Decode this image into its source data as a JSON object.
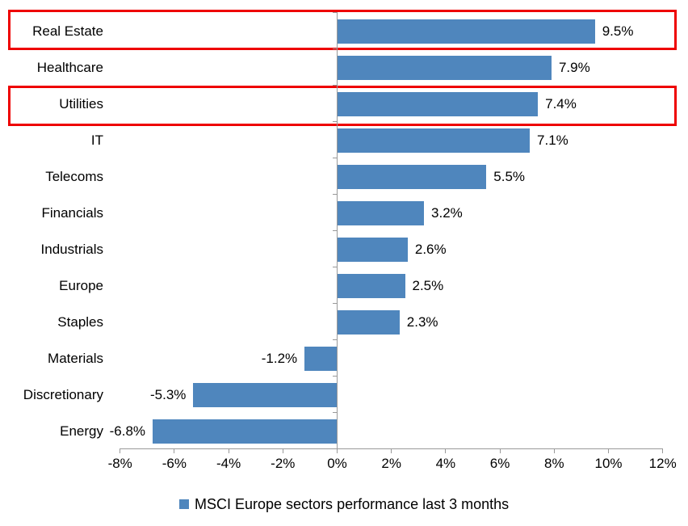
{
  "chart_data": {
    "type": "bar",
    "orientation": "horizontal",
    "title": "",
    "categories": [
      "Real Estate",
      "Healthcare",
      "Utilities",
      "IT",
      "Telecoms",
      "Financials",
      "Industrials",
      "Europe",
      "Staples",
      "Materials",
      "Discretionary",
      "Energy"
    ],
    "values": [
      9.5,
      7.9,
      7.4,
      7.1,
      5.5,
      3.2,
      2.6,
      2.5,
      2.3,
      -1.2,
      -5.3,
      -6.8
    ],
    "value_labels": [
      "9.5%",
      "7.9%",
      "7.4%",
      "7.1%",
      "5.5%",
      "3.2%",
      "2.6%",
      "2.5%",
      "2.3%",
      "-1.2%",
      "-5.3%",
      "-6.8%"
    ],
    "xlabel": "",
    "ylabel": "",
    "xlim": [
      -8,
      12
    ],
    "x_tick_values": [
      -8,
      -6,
      -4,
      -2,
      0,
      2,
      4,
      6,
      8,
      10,
      12
    ],
    "x_tick_labels": [
      "-8%",
      "-6%",
      "-4%",
      "-2%",
      "0%",
      "2%",
      "4%",
      "6%",
      "8%",
      "10%",
      "12%"
    ],
    "grid": false,
    "legend": {
      "position": "bottom",
      "label": "MSCI Europe sectors performance last 3 months"
    },
    "highlighted_categories": [
      "Real Estate",
      "Utilities"
    ],
    "colors": {
      "bar": "#4f86bd",
      "axis": "#999999",
      "text": "#000000",
      "highlight_border": "#ee0000",
      "background": "#ffffff"
    }
  }
}
